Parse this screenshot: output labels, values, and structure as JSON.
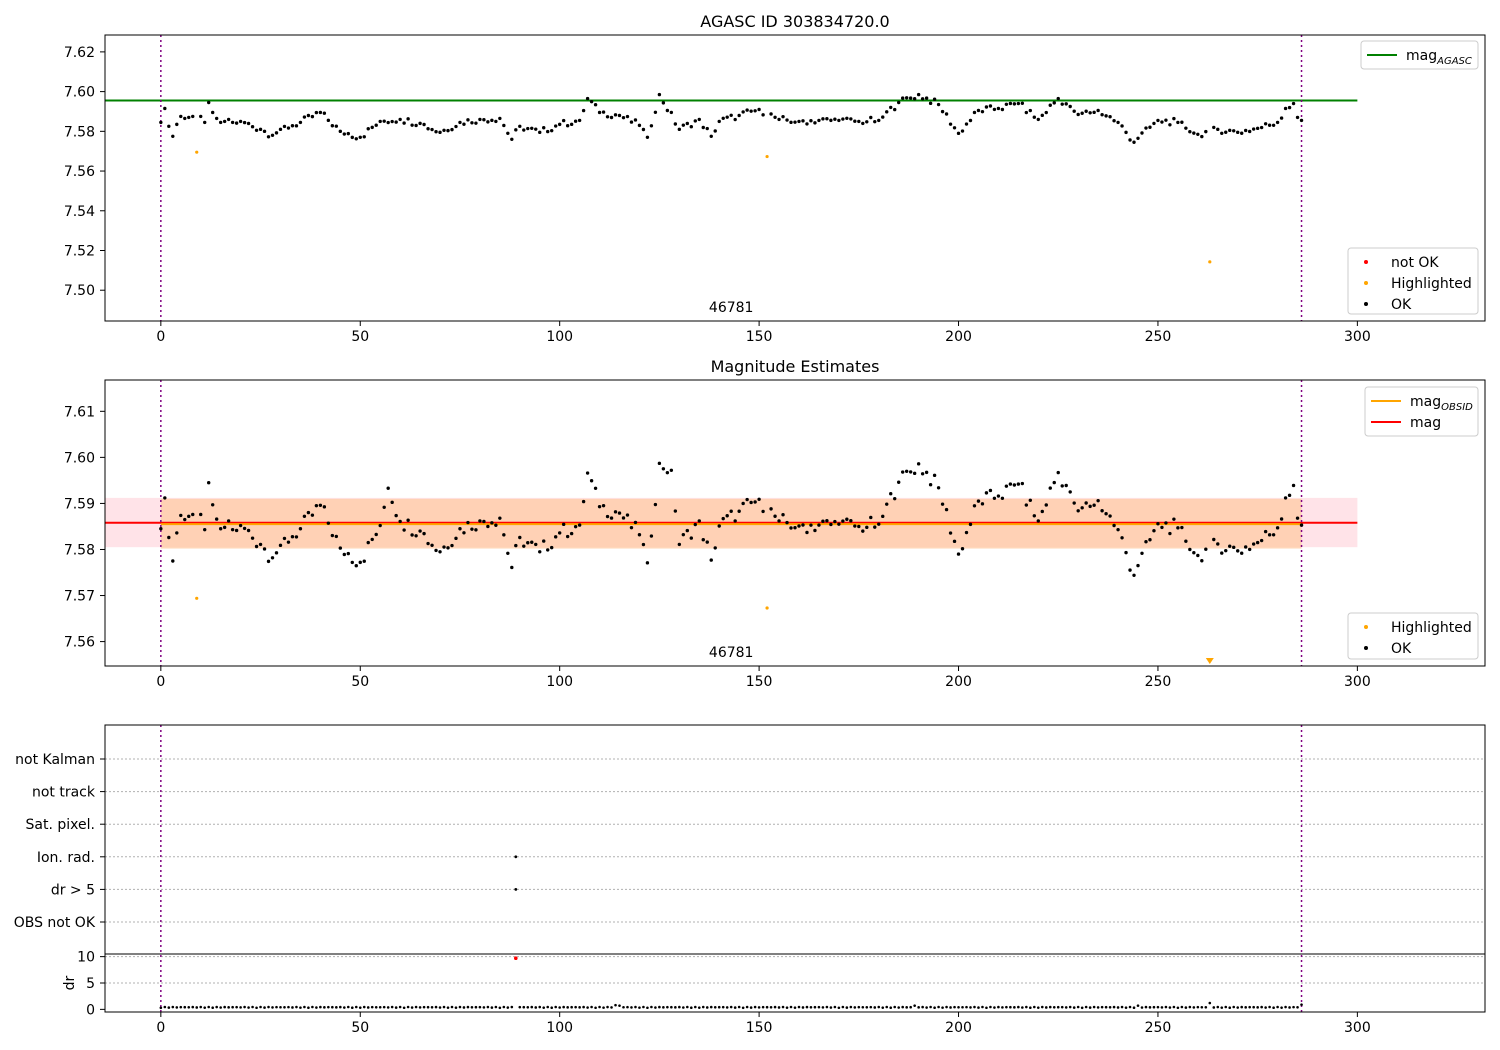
{
  "colors": {
    "ok": "#000000",
    "highlighted": "#ffa500",
    "not_ok": "#ff0000",
    "agasc_line": "#008000",
    "obsid_line": "#ffa500",
    "mag_line": "#ff0000",
    "band_outer": "#ffc0cb",
    "band_inner": "#ffcba4",
    "obsid_boundary": "#800080",
    "grid": "#b0b0b0"
  },
  "chart_data": [
    {
      "type": "scatter",
      "title": "AGASC ID 303834720.0",
      "xlim": [
        -14,
        332
      ],
      "ylim": [
        7.4845,
        7.6285
      ],
      "x_ticks": [
        0,
        50,
        100,
        150,
        200,
        250,
        300
      ],
      "y_ticks": [
        7.5,
        7.52,
        7.54,
        7.56,
        7.58,
        7.6,
        7.62
      ],
      "y_tick_labels": [
        "7.50",
        "7.52",
        "7.54",
        "7.56",
        "7.58",
        "7.60",
        "7.62"
      ],
      "hline": {
        "name": "mag_AGASC",
        "y": 7.5955,
        "x_range": [
          -14,
          300
        ]
      },
      "obsid_boundaries": [
        0,
        286
      ],
      "obsid_labels": [
        {
          "x": 143,
          "text": "46781"
        }
      ],
      "legends": [
        {
          "position": "top-right",
          "entries": [
            {
              "kind": "line",
              "label": "mag",
              "sub": "AGASC",
              "color": "#008000"
            }
          ]
        },
        {
          "position": "bottom-right",
          "entries": [
            {
              "kind": "dot",
              "label": "not OK",
              "color": "#ff0000"
            },
            {
              "kind": "dot",
              "label": "Highlighted",
              "color": "#ffa500"
            },
            {
              "kind": "dot",
              "label": "OK",
              "color": "#000000"
            }
          ]
        }
      ],
      "series": [
        {
          "name": "Highlighted",
          "x": [
            9,
            152,
            263
          ],
          "y": [
            7.5695,
            7.5673,
            7.5143
          ]
        },
        {
          "name": "OK",
          "x": [
            0,
            1,
            2,
            3,
            4,
            5,
            6,
            7,
            8,
            10,
            11,
            12,
            13,
            14,
            15,
            16,
            17,
            18,
            20,
            25,
            28,
            30,
            35,
            40,
            45,
            50,
            55,
            60,
            65,
            70,
            75,
            80,
            85,
            88,
            90,
            95,
            100,
            105,
            107,
            110,
            115,
            120,
            122,
            125,
            130,
            135,
            138,
            140,
            145,
            150,
            155,
            160,
            165,
            170,
            175,
            180,
            185,
            190,
            195,
            200,
            205,
            210,
            215,
            220,
            225,
            228,
            230,
            235,
            240,
            244,
            245,
            250,
            255,
            260,
            265,
            270,
            275,
            280,
            282,
            284,
            285,
            286
          ],
          "y": [
            7.5845,
            7.5915,
            7.5825,
            7.5775,
            7.5835,
            7.5875,
            7.5865,
            7.587,
            7.5875,
            7.5875,
            7.5845,
            7.5945,
            7.5895,
            7.5865,
            7.5845,
            7.585,
            7.586,
            7.5845,
            7.585,
            7.581,
            7.578,
            7.581,
            7.5845,
            7.5895,
            7.58,
            7.577,
            7.585,
            7.586,
            7.584,
            7.5795,
            7.5845,
            7.586,
            7.5865,
            7.576,
            7.5825,
            7.5795,
            7.5835,
            7.5855,
            7.5965,
            7.5895,
            7.588,
            7.583,
            7.577,
            7.5985,
            7.581,
            7.586,
            7.5775,
            7.585,
            7.588,
            7.591,
            7.586,
            7.585,
            7.5855,
            7.5855,
            7.585,
            7.5855,
            7.5945,
            7.5985,
            7.5935,
            7.579,
            7.5905,
            7.5915,
            7.594,
            7.586,
            7.5965,
            7.5925,
            7.5885,
            7.5905,
            7.5845,
            7.5745,
            7.5765,
            7.5855,
            7.5845,
            7.5785,
            7.581,
            7.5795,
            7.5815,
            7.5845,
            7.5915,
            7.594,
            7.587,
            7.5855
          ]
        }
      ]
    },
    {
      "type": "scatter",
      "title": "Magnitude Estimates",
      "xlim": [
        -14,
        332
      ],
      "ylim": [
        7.5547,
        7.6168
      ],
      "x_ticks": [
        0,
        50,
        100,
        150,
        200,
        250,
        300
      ],
      "y_ticks": [
        7.56,
        7.57,
        7.58,
        7.59,
        7.6,
        7.61
      ],
      "y_tick_labels": [
        "7.56",
        "7.57",
        "7.58",
        "7.59",
        "7.60",
        "7.61"
      ],
      "mag": 7.5858,
      "mag_obsid": 7.5855,
      "band_outer": [
        7.5805,
        7.5912
      ],
      "band_inner": [
        7.5802,
        7.591
      ],
      "band_x_range": [
        -14,
        300
      ],
      "obsid_boundaries": [
        0,
        286
      ],
      "obsid_labels": [
        {
          "x": 143,
          "text": "46781"
        }
      ],
      "out_of_range_marker": {
        "x": 263,
        "y": 7.5555
      },
      "legends": [
        {
          "position": "top-right",
          "entries": [
            {
              "kind": "line",
              "label": "mag",
              "sub": "OBSID",
              "color": "#ffa500"
            },
            {
              "kind": "line",
              "label": "mag",
              "sub": "",
              "color": "#ff0000"
            }
          ]
        },
        {
          "position": "bottom-right",
          "entries": [
            {
              "kind": "dot",
              "label": "Highlighted",
              "color": "#ffa500"
            },
            {
              "kind": "dot",
              "label": "OK",
              "color": "#000000"
            }
          ]
        }
      ],
      "series": [
        {
          "name": "Highlighted",
          "x": [
            9,
            152
          ],
          "y": [
            7.5694,
            7.5673
          ]
        },
        {
          "name": "OK",
          "x": [
            0,
            1,
            2,
            3,
            4,
            5,
            6,
            7,
            8,
            10,
            11,
            12,
            13,
            14,
            15,
            16,
            17,
            18,
            20,
            25,
            28,
            30,
            35,
            40,
            45,
            50,
            55,
            57,
            60,
            65,
            70,
            75,
            80,
            85,
            88,
            90,
            95,
            100,
            105,
            107,
            110,
            115,
            120,
            122,
            125,
            128,
            130,
            135,
            138,
            140,
            145,
            150,
            155,
            160,
            165,
            170,
            175,
            180,
            185,
            190,
            195,
            200,
            205,
            210,
            215,
            220,
            225,
            228,
            230,
            235,
            240,
            244,
            245,
            250,
            255,
            260,
            265,
            270,
            275,
            280,
            282,
            284,
            285,
            286
          ],
          "y": [
            7.5845,
            7.5912,
            7.5826,
            7.5775,
            7.5836,
            7.5874,
            7.5865,
            7.5872,
            7.5876,
            7.5876,
            7.5843,
            7.5945,
            7.5897,
            7.5866,
            7.5845,
            7.5848,
            7.5862,
            7.5843,
            7.5852,
            7.5811,
            7.5782,
            7.5809,
            7.5845,
            7.5896,
            7.5803,
            7.5772,
            7.5852,
            7.5933,
            7.5861,
            7.584,
            7.5795,
            7.5845,
            7.5862,
            7.5868,
            7.5761,
            7.5826,
            7.5795,
            7.5836,
            7.5853,
            7.5966,
            7.5893,
            7.5879,
            7.5832,
            7.5771,
            7.5987,
            7.5972,
            7.5811,
            7.5862,
            7.5777,
            7.5851,
            7.5883,
            7.5909,
            7.5862,
            7.5851,
            7.5853,
            7.5855,
            7.585,
            7.5855,
            7.5946,
            7.5986,
            7.5934,
            7.579,
            7.5905,
            7.5916,
            7.5942,
            7.5862,
            7.5967,
            7.5925,
            7.5884,
            7.5906,
            7.5843,
            7.5744,
            7.5765,
            7.5856,
            7.5847,
            7.5787,
            7.5812,
            7.5797,
            7.5815,
            7.5847,
            7.5912,
            7.5939,
            7.5868,
            7.5853
          ]
        }
      ]
    },
    {
      "type": "scatter",
      "title": "",
      "xlim": [
        -14,
        332
      ],
      "x_ticks": [
        0,
        50,
        100,
        150,
        200,
        250,
        300
      ],
      "obsid_boundaries": [
        0,
        286
      ],
      "flag_rows": [
        "not Kalman",
        "not track",
        "Sat. pixel.",
        "Ion. rad.",
        "dr > 5",
        "OBS not OK"
      ],
      "flag_points": [
        {
          "row": "Ion. rad.",
          "x": 89
        },
        {
          "row": "dr > 5",
          "x": 89
        }
      ],
      "dr_panel": {
        "ylabel": "dr",
        "ylim": [
          -0.5,
          10.5
        ],
        "y_ticks": [
          0,
          5,
          10
        ],
        "y_tick_labels": [
          "0",
          "5",
          "10"
        ],
        "highlight_point": {
          "x": 89,
          "y": 9.7
        },
        "x_step": 1,
        "x_end": 286,
        "baseline": 0.3,
        "bumps": [
          {
            "x": 114,
            "y": 0.8
          },
          {
            "x": 115,
            "y": 0.7
          },
          {
            "x": 189,
            "y": 0.7
          },
          {
            "x": 245,
            "y": 0.7
          },
          {
            "x": 263,
            "y": 1.2
          },
          {
            "x": 286,
            "y": 0.9
          }
        ]
      }
    }
  ]
}
